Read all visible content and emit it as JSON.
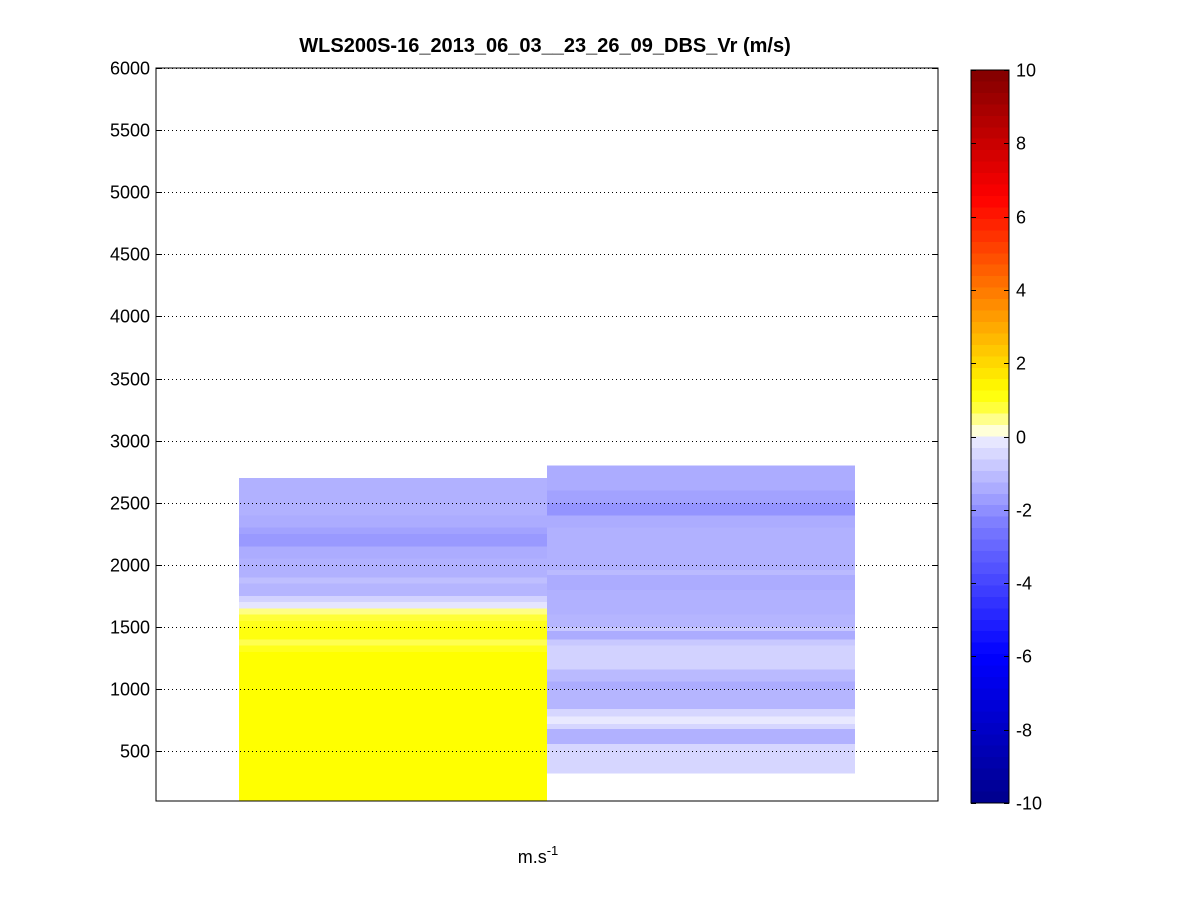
{
  "chart_data": {
    "type": "heatmap",
    "title": "WLS200S-16_2013_06_03__23_26_09_DBS_Vr (m/s)",
    "xlabel": "m.s",
    "xlabel_superscript": "-1",
    "ylabel": "",
    "ylim": [
      100,
      6000
    ],
    "yticks": [
      500,
      1000,
      1500,
      2000,
      2500,
      3000,
      3500,
      4000,
      4500,
      5000,
      5500,
      6000
    ],
    "grid": "y-dotted",
    "colorbar": {
      "min": -10,
      "max": 10,
      "ticks": [
        -10,
        -8,
        -6,
        -4,
        -2,
        0,
        2,
        4,
        6,
        8,
        10
      ],
      "colormap": "jet-like diverging with white at 0",
      "placement": "right"
    },
    "columns": [
      {
        "index": 1,
        "cells": [
          {
            "y0": 100,
            "y1": 1300,
            "v": 1.2
          },
          {
            "y0": 1300,
            "y1": 1350,
            "v": 1.0
          },
          {
            "y0": 1350,
            "y1": 1400,
            "v": 0.7
          },
          {
            "y0": 1400,
            "y1": 1500,
            "v": 1.1
          },
          {
            "y0": 1500,
            "y1": 1550,
            "v": 1.0
          },
          {
            "y0": 1550,
            "y1": 1600,
            "v": 0.8
          },
          {
            "y0": 1600,
            "y1": 1650,
            "v": 0.5
          },
          {
            "y0": 1650,
            "y1": 1700,
            "v": -0.2
          },
          {
            "y0": 1700,
            "y1": 1750,
            "v": -0.6
          },
          {
            "y0": 1750,
            "y1": 1850,
            "v": -1.2
          },
          {
            "y0": 1850,
            "y1": 1900,
            "v": -1.0
          },
          {
            "y0": 1900,
            "y1": 2050,
            "v": -1.3
          },
          {
            "y0": 2050,
            "y1": 2150,
            "v": -1.4
          },
          {
            "y0": 2150,
            "y1": 2250,
            "v": -1.8
          },
          {
            "y0": 2250,
            "y1": 2300,
            "v": -1.6
          },
          {
            "y0": 2300,
            "y1": 2400,
            "v": -1.4
          },
          {
            "y0": 2400,
            "y1": 2700,
            "v": -1.3
          }
        ]
      },
      {
        "index": 2,
        "cells": [
          {
            "y0": 320,
            "y1": 560,
            "v": -0.5
          },
          {
            "y0": 560,
            "y1": 680,
            "v": -1.3
          },
          {
            "y0": 680,
            "y1": 720,
            "v": -0.5
          },
          {
            "y0": 720,
            "y1": 780,
            "v": -0.1
          },
          {
            "y0": 780,
            "y1": 840,
            "v": -0.5
          },
          {
            "y0": 840,
            "y1": 1000,
            "v": -1.2
          },
          {
            "y0": 1000,
            "y1": 1060,
            "v": -1.4
          },
          {
            "y0": 1060,
            "y1": 1160,
            "v": -1.1
          },
          {
            "y0": 1160,
            "y1": 1350,
            "v": -0.6
          },
          {
            "y0": 1350,
            "y1": 1400,
            "v": -0.8
          },
          {
            "y0": 1400,
            "y1": 1470,
            "v": -1.4
          },
          {
            "y0": 1470,
            "y1": 1500,
            "v": -0.8
          },
          {
            "y0": 1500,
            "y1": 1600,
            "v": -1.2
          },
          {
            "y0": 1600,
            "y1": 1800,
            "v": -1.3
          },
          {
            "y0": 1800,
            "y1": 1920,
            "v": -1.4
          },
          {
            "y0": 1920,
            "y1": 1960,
            "v": -1.1
          },
          {
            "y0": 1960,
            "y1": 2300,
            "v": -1.3
          },
          {
            "y0": 2300,
            "y1": 2400,
            "v": -1.4
          },
          {
            "y0": 2400,
            "y1": 2500,
            "v": -1.9
          },
          {
            "y0": 2500,
            "y1": 2600,
            "v": -1.6
          },
          {
            "y0": 2600,
            "y1": 2800,
            "v": -1.4
          }
        ]
      }
    ]
  }
}
